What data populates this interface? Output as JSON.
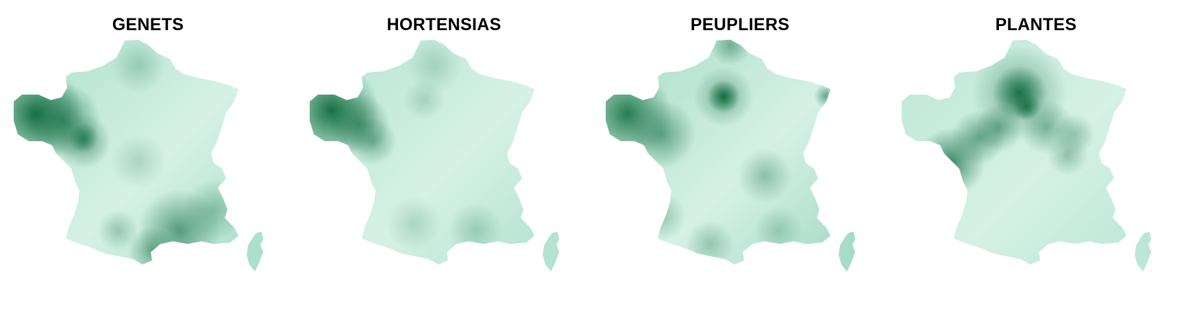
{
  "maps": [
    {
      "title": "GENETS",
      "base": "#ace0cb",
      "dark": "#0f6a3d",
      "hotspots": "genets"
    },
    {
      "title": "HORTENSIAS",
      "base": "#b4e3d0",
      "dark": "#0f6a3d",
      "hotspots": "hortensias"
    },
    {
      "title": "PEUPLIERS",
      "base": "#a7dcc6",
      "dark": "#0f6a3d",
      "hotspots": "peupliers"
    },
    {
      "title": "PLANTES",
      "base": "#bce7d6",
      "dark": "#0f6a3d",
      "hotspots": "plantes"
    }
  ],
  "color_scale": {
    "light": "#d6f1e6",
    "mid": "#7fcbad",
    "dark": "#0f6a3d"
  }
}
